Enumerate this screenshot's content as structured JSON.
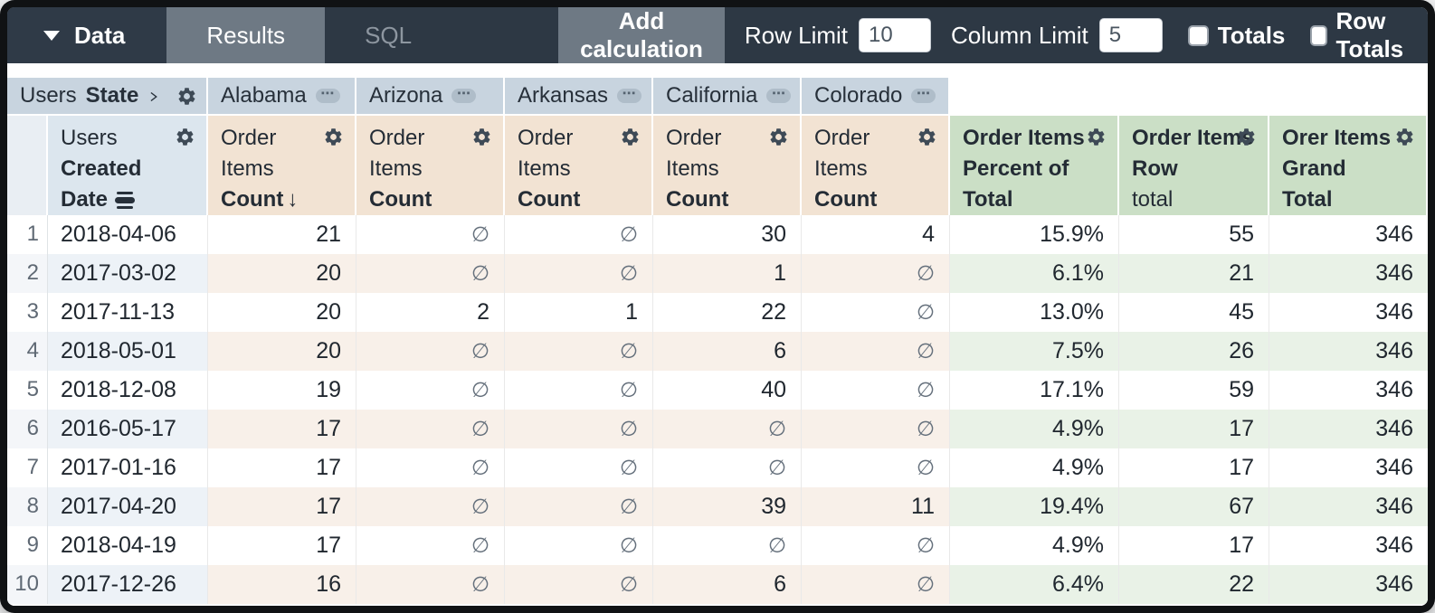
{
  "toolbar": {
    "data_label": "Data",
    "tabs": [
      {
        "label": "Results",
        "active": true
      },
      {
        "label": "SQL",
        "active": false
      }
    ],
    "add_calculation_label": "Add calculation",
    "row_limit": {
      "label": "Row Limit",
      "value": "10"
    },
    "column_limit": {
      "label": "Column Limit",
      "value": "5"
    },
    "totals": {
      "label": "Totals",
      "checked": false
    },
    "row_totals": {
      "label": "Row Totals",
      "checked": false
    }
  },
  "pivot": {
    "dimension_prefix": "Users",
    "dimension_field": "State",
    "states": [
      "Alabama",
      "Arizona",
      "Arkansas",
      "California",
      "Colorado"
    ]
  },
  "headers": {
    "row_dimension_lines": [
      "Users",
      "Created",
      "Date"
    ],
    "measure_lines": [
      "Order",
      "Items",
      "Count"
    ],
    "sort_column_index": 0,
    "calc_columns": [
      {
        "lines": [
          "Order Items",
          "Percent of",
          "Total"
        ]
      },
      {
        "lines": [
          "Order Items",
          "Row",
          "total"
        ],
        "light_line_index": 2
      },
      {
        "lines": [
          "Orer Items",
          "Grand",
          "Total"
        ]
      }
    ]
  },
  "icons": {
    "gear-icon": "⚙",
    "caret-down-icon": "▼",
    "chevron-right-icon": "›",
    "more-icon": "⋯",
    "sort-desc-icon": "↓",
    "date-subtotal-icon": "☰",
    "null-icon": "∅"
  },
  "table": {
    "null_symbol": "∅",
    "sort_arrow": "↓",
    "rows": [
      {
        "num": "1",
        "date": "2018-04-06",
        "state_values": [
          "21",
          null,
          null,
          "30",
          "4"
        ],
        "percent": "15.9%",
        "row_total": "55",
        "grand_total": "346"
      },
      {
        "num": "2",
        "date": "2017-03-02",
        "state_values": [
          "20",
          null,
          null,
          "1",
          null
        ],
        "percent": "6.1%",
        "row_total": "21",
        "grand_total": "346"
      },
      {
        "num": "3",
        "date": "2017-11-13",
        "state_values": [
          "20",
          "2",
          "1",
          "22",
          null
        ],
        "percent": "13.0%",
        "row_total": "45",
        "grand_total": "346"
      },
      {
        "num": "4",
        "date": "2018-05-01",
        "state_values": [
          "20",
          null,
          null,
          "6",
          null
        ],
        "percent": "7.5%",
        "row_total": "26",
        "grand_total": "346"
      },
      {
        "num": "5",
        "date": "2018-12-08",
        "state_values": [
          "19",
          null,
          null,
          "40",
          null
        ],
        "percent": "17.1%",
        "row_total": "59",
        "grand_total": "346"
      },
      {
        "num": "6",
        "date": "2016-05-17",
        "state_values": [
          "17",
          null,
          null,
          null,
          null
        ],
        "percent": "4.9%",
        "row_total": "17",
        "grand_total": "346"
      },
      {
        "num": "7",
        "date": "2017-01-16",
        "state_values": [
          "17",
          null,
          null,
          null,
          null
        ],
        "percent": "4.9%",
        "row_total": "17",
        "grand_total": "346"
      },
      {
        "num": "8",
        "date": "2017-04-20",
        "state_values": [
          "17",
          null,
          null,
          "39",
          "11"
        ],
        "percent": "19.4%",
        "row_total": "67",
        "grand_total": "346"
      },
      {
        "num": "9",
        "date": "2018-04-19",
        "state_values": [
          "17",
          null,
          null,
          null,
          null
        ],
        "percent": "4.9%",
        "row_total": "17",
        "grand_total": "346"
      },
      {
        "num": "10",
        "date": "2017-12-26",
        "state_values": [
          "16",
          null,
          null,
          "6",
          null
        ],
        "percent": "6.4%",
        "row_total": "22",
        "grand_total": "346"
      }
    ]
  },
  "colors": {
    "topbar_bg": "#2d3844",
    "tab_active_bg": "#6e7984",
    "pivot_header_bg": "#c8d4df",
    "dimension_header_bg": "#dce6ee",
    "measure_header_bg": "#f2e3d3",
    "calc_header_bg": "#cbdfc6",
    "stripe_blue": "#edf2f7",
    "stripe_tan": "#f8f0e9",
    "stripe_green": "#e9f2e7"
  }
}
